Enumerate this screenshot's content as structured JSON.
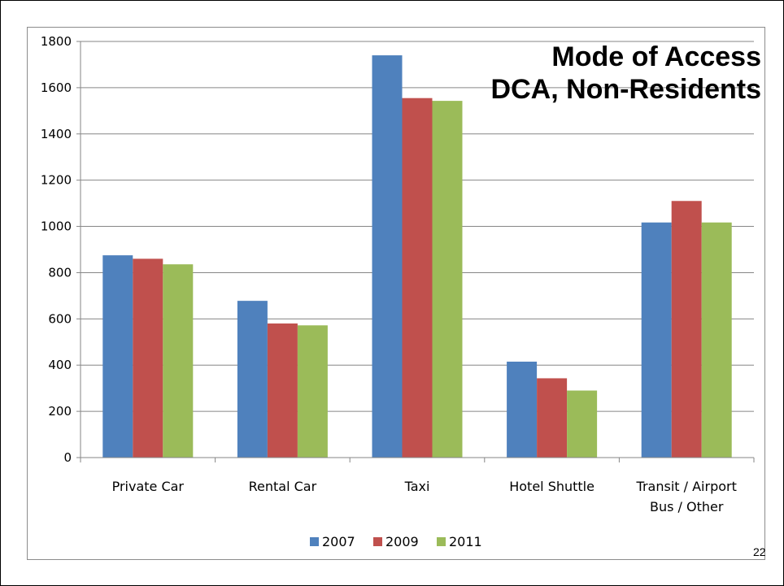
{
  "page_number": "22",
  "colors": {
    "2007": "#4f81bd",
    "2009": "#c0504d",
    "2011": "#9bbb59",
    "grid": "#868686"
  },
  "chart_data": {
    "type": "bar",
    "title": [
      "Mode of Access",
      "DCA, Non-Residents"
    ],
    "categories": [
      [
        "Private Car"
      ],
      [
        "Rental Car"
      ],
      [
        "Taxi"
      ],
      [
        "Hotel Shuttle"
      ],
      [
        "Transit / Airport",
        "Bus / Other"
      ]
    ],
    "series": [
      {
        "name": "2007",
        "values": [
          875,
          678,
          1740,
          415,
          1017
        ]
      },
      {
        "name": "2009",
        "values": [
          860,
          580,
          1555,
          343,
          1110
        ]
      },
      {
        "name": "2011",
        "values": [
          836,
          572,
          1543,
          290,
          1017
        ]
      }
    ],
    "yticks": [
      "0",
      "200",
      "400",
      "600",
      "800",
      "1000",
      "1200",
      "1400",
      "1600",
      "1800"
    ],
    "ylim": [
      0,
      1800
    ],
    "grid": true,
    "legend_position": "bottom"
  }
}
